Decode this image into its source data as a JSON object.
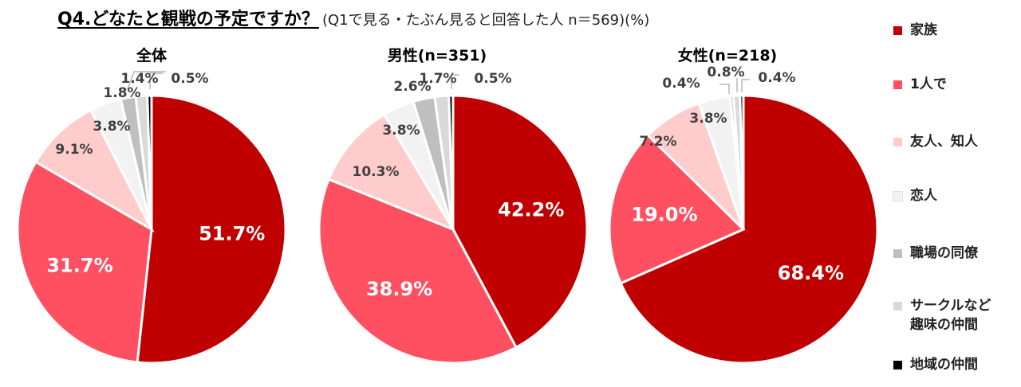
{
  "title": {
    "main": "Q4.どなたと観戦の予定ですか？",
    "sub": "(Q1で見る・たぶん見ると回答した人 n＝569)(%)"
  },
  "legend": [
    {
      "label": "家族",
      "color": "#c00000"
    },
    {
      "label": "1人で",
      "color": "#ff5061"
    },
    {
      "label": "友人、知人",
      "color": "#ffcccc"
    },
    {
      "label": "恋人",
      "color": "#f2f2f2"
    },
    {
      "label": "職場の同僚",
      "color": "#bfbfbf"
    },
    {
      "label": "サークルなど\n趣味の仲間",
      "color": "#d9d9d9"
    },
    {
      "label": "地域の仲間",
      "color": "#000000"
    }
  ],
  "chart_data": [
    {
      "type": "pie",
      "title": "全体",
      "categories": [
        "家族",
        "1人で",
        "友人、知人",
        "恋人",
        "職場の同僚",
        "サークルなど趣味の仲間",
        "地域の仲間"
      ],
      "values": [
        51.7,
        31.7,
        9.1,
        3.8,
        1.8,
        1.4,
        0.5
      ],
      "labels": [
        "51.7%",
        "31.7%",
        "9.1%",
        "3.8%",
        "1.8%",
        "1.4%",
        "0.5%"
      ]
    },
    {
      "type": "pie",
      "title": "男性(n=351)",
      "categories": [
        "家族",
        "1人で",
        "友人、知人",
        "恋人",
        "職場の同僚",
        "サークルなど趣味の仲間",
        "地域の仲間"
      ],
      "values": [
        42.2,
        38.9,
        10.3,
        3.8,
        2.6,
        1.7,
        0.5
      ],
      "labels": [
        "42.2%",
        "38.9%",
        "10.3%",
        "3.8%",
        "2.6%",
        "1.7%",
        "0.5%"
      ]
    },
    {
      "type": "pie",
      "title": "女性(n=218)",
      "categories": [
        "家族",
        "1人で",
        "友人、知人",
        "恋人",
        "職場の同僚",
        "サークルなど趣味の仲間",
        "地域の仲間"
      ],
      "values": [
        68.4,
        19.0,
        7.2,
        3.8,
        0.4,
        0.8,
        0.4
      ],
      "labels": [
        "68.4%",
        "19.0%",
        "7.2%",
        "3.8%",
        "0.4%",
        "0.8%",
        "0.4%"
      ]
    }
  ]
}
